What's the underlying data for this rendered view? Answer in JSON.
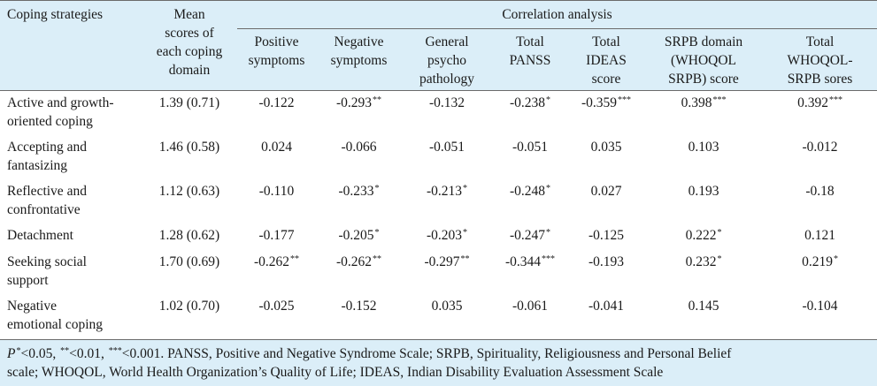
{
  "table": {
    "header": {
      "coping_label": "Coping strategies",
      "mean_label_lines": [
        "Mean",
        "scores of",
        "each coping",
        "domain"
      ],
      "group_label": "Correlation analysis",
      "columns": [
        {
          "lines": [
            "Positive",
            "symptoms"
          ]
        },
        {
          "lines": [
            "Negative",
            "symptoms"
          ]
        },
        {
          "lines": [
            "General",
            "psycho",
            "pathology"
          ]
        },
        {
          "lines": [
            "Total",
            "PANSS"
          ]
        },
        {
          "lines": [
            "Total",
            "IDEAS",
            "score"
          ]
        },
        {
          "lines": [
            "SRPB domain",
            "(WHOQOL",
            "SRPB) score"
          ]
        },
        {
          "lines": [
            "Total",
            "WHOQOL-",
            "SRPB sores"
          ]
        }
      ]
    },
    "rows": [
      {
        "name_lines": [
          "Active and growth-",
          "oriented coping"
        ],
        "mean": "1.39 (0.71)",
        "cells": [
          {
            "v": "-0.122",
            "s": ""
          },
          {
            "v": "-0.293",
            "s": "**"
          },
          {
            "v": "-0.132",
            "s": ""
          },
          {
            "v": "-0.238",
            "s": "*"
          },
          {
            "v": "-0.359",
            "s": "***"
          },
          {
            "v": "0.398",
            "s": "***"
          },
          {
            "v": "0.392",
            "s": "***"
          }
        ]
      },
      {
        "name_lines": [
          "Accepting and",
          "fantasizing"
        ],
        "mean": "1.46 (0.58)",
        "cells": [
          {
            "v": "0.024",
            "s": ""
          },
          {
            "v": "-0.066",
            "s": ""
          },
          {
            "v": "-0.051",
            "s": ""
          },
          {
            "v": "-0.051",
            "s": ""
          },
          {
            "v": "0.035",
            "s": ""
          },
          {
            "v": "0.103",
            "s": ""
          },
          {
            "v": "-0.012",
            "s": ""
          }
        ]
      },
      {
        "name_lines": [
          "Reflective and",
          "confrontative"
        ],
        "mean": "1.12 (0.63)",
        "cells": [
          {
            "v": "-0.110",
            "s": ""
          },
          {
            "v": "-0.233",
            "s": "*"
          },
          {
            "v": "-0.213",
            "s": "*"
          },
          {
            "v": "-0.248",
            "s": "*"
          },
          {
            "v": "0.027",
            "s": ""
          },
          {
            "v": "0.193",
            "s": ""
          },
          {
            "v": "-0.18",
            "s": ""
          }
        ]
      },
      {
        "name_lines": [
          "Detachment"
        ],
        "mean": "1.28 (0.62)",
        "cells": [
          {
            "v": "-0.177",
            "s": ""
          },
          {
            "v": "-0.205",
            "s": "*"
          },
          {
            "v": "-0.203",
            "s": "*"
          },
          {
            "v": "-0.247",
            "s": "*"
          },
          {
            "v": "-0.125",
            "s": ""
          },
          {
            "v": "0.222",
            "s": "*"
          },
          {
            "v": "0.121",
            "s": ""
          }
        ]
      },
      {
        "name_lines": [
          "Seeking social",
          "support"
        ],
        "mean": "1.70 (0.69)",
        "cells": [
          {
            "v": "-0.262",
            "s": "**"
          },
          {
            "v": "-0.262",
            "s": "**"
          },
          {
            "v": "-0.297",
            "s": "**"
          },
          {
            "v": "-0.344",
            "s": "***"
          },
          {
            "v": "-0.193",
            "s": ""
          },
          {
            "v": "0.232",
            "s": "*"
          },
          {
            "v": "0.219",
            "s": "*"
          }
        ]
      },
      {
        "name_lines": [
          "Negative",
          "emotional coping"
        ],
        "mean": "1.02 (0.70)",
        "cells": [
          {
            "v": "-0.025",
            "s": ""
          },
          {
            "v": "-0.152",
            "s": ""
          },
          {
            "v": "0.035",
            "s": ""
          },
          {
            "v": "-0.061",
            "s": ""
          },
          {
            "v": "-0.041",
            "s": ""
          },
          {
            "v": "0.145",
            "s": ""
          },
          {
            "v": "-0.104",
            "s": ""
          }
        ]
      }
    ],
    "footnote": {
      "p_letter": "P",
      "parts": [
        {
          "sup": "*",
          "text": "<0.05, "
        },
        {
          "sup": "**",
          "text": "<0.01, "
        },
        {
          "sup": "***",
          "text": "<0.001. PANSS, Positive and Negative Syndrome Scale; SRPB, Spirituality, Religiousness and Personal Belief"
        }
      ],
      "line2": "scale; WHOQOL, World Health Organization’s Quality of Life; IDEAS, Indian Disability Evaluation Assessment Scale"
    }
  }
}
